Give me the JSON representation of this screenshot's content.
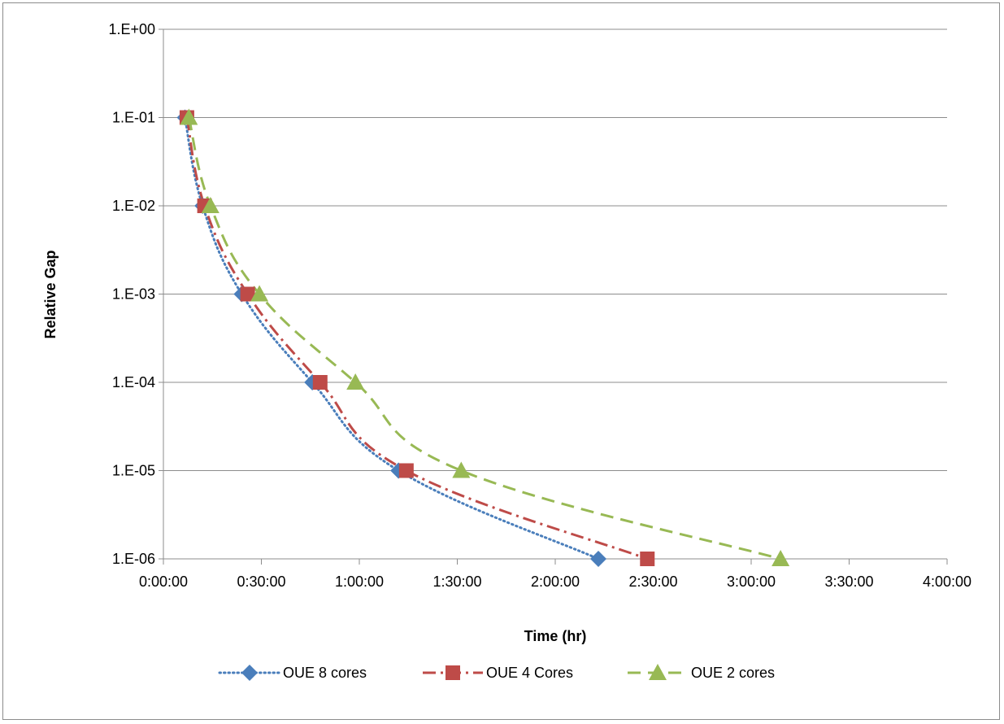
{
  "chart_data": {
    "type": "line",
    "title": "",
    "xlabel": "Time  (hr)",
    "ylabel": "Relative Gap",
    "x_unit": "hours",
    "y_scale": "log",
    "xlim_hours": [
      0,
      4
    ],
    "ylim": [
      1e-06,
      1
    ],
    "x_tick_values_hours": [
      0,
      0.5,
      1,
      1.5,
      2,
      2.5,
      3,
      3.5,
      4
    ],
    "x_tick_labels": [
      "0:00:00",
      "0:30:00",
      "1:00:00",
      "1:30:00",
      "2:00:00",
      "2:30:00",
      "3:00:00",
      "3:30:00",
      "4:00:00"
    ],
    "y_tick_values": [
      1,
      0.1,
      0.01,
      0.001,
      0.0001,
      1e-05,
      1e-06
    ],
    "y_tick_labels": [
      "1.E+00",
      "1.E-01",
      "1.E-02",
      "1.E-03",
      "1.E-04",
      "1.E-05",
      "1.E-06"
    ],
    "grid": "horizontal",
    "legend_position": "bottom",
    "series": [
      {
        "name": "OUE 8 cores",
        "color": "#4a7ebb",
        "line_style": "dotted",
        "marker": "diamond",
        "x_hours": [
          0.11,
          0.2,
          0.4,
          0.76,
          1.2,
          2.22
        ],
        "y": [
          0.1,
          0.01,
          0.001,
          0.0001,
          1e-05,
          1e-06
        ]
      },
      {
        "name": "OUE 4 Cores",
        "color": "#be4b48",
        "line_style": "dash-dot",
        "marker": "square",
        "x_hours": [
          0.12,
          0.21,
          0.43,
          0.8,
          1.24,
          2.47
        ],
        "y": [
          0.1,
          0.01,
          0.001,
          0.0001,
          1e-05,
          1e-06
        ]
      },
      {
        "name": "OUE 2 cores",
        "color": "#98b954",
        "line_style": "dashed",
        "marker": "triangle",
        "x_hours": [
          0.13,
          0.24,
          0.49,
          0.98,
          1.52,
          3.15
        ],
        "y": [
          0.1,
          0.01,
          0.001,
          0.0001,
          1e-05,
          1e-06
        ]
      }
    ]
  }
}
